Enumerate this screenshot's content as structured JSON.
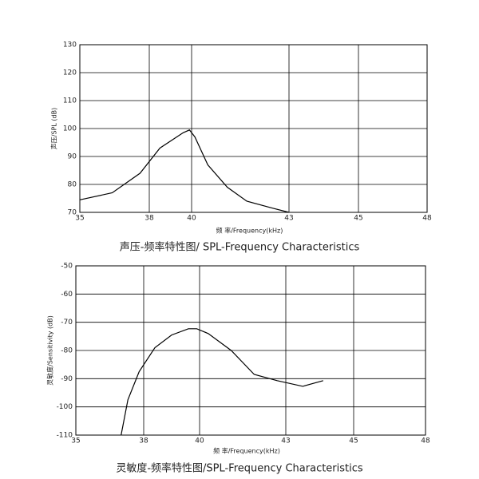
{
  "chart_data": [
    {
      "type": "line",
      "title": "声压-频率特性图/ SPL-Frequency Characteristics",
      "x_label": "频 率/Frequency(kHz)",
      "y_label": "声压/SPL (dB)",
      "x": [
        35,
        36.4,
        37.6,
        38.5,
        39.6,
        39.9,
        40.1,
        40.5,
        41.1,
        41.7,
        42.5,
        43
      ],
      "values": [
        74.5,
        77,
        84,
        93,
        98.5,
        99.5,
        97,
        87,
        79,
        74,
        71.5,
        70
      ],
      "color": "#000000",
      "xlim": [
        35,
        48
      ],
      "xticks": [
        35,
        38,
        40,
        43,
        45,
        48
      ],
      "ylim": [
        70,
        130
      ],
      "yticks": [
        70,
        80,
        90,
        100,
        110,
        120,
        130
      ],
      "grid": true
    },
    {
      "type": "line",
      "title": "灵敏度-频率特性图/SPL-Frequency Characteristics",
      "x_label": "频 率/Frequency(kHz)",
      "y_label": "灵敏度/Sensitivity (dB)",
      "x": [
        37.0,
        37.3,
        37.8,
        38.4,
        39.0,
        39.6,
        39.9,
        40.3,
        41.1,
        41.9,
        42.7,
        43.5,
        44.1
      ],
      "values": [
        -110,
        -97.5,
        -87.5,
        -79,
        -74.5,
        -72.3,
        -72.3,
        -74,
        -80,
        -88.5,
        -90.7,
        -92.7,
        -90.7
      ],
      "color": "#000000",
      "xlim": [
        35,
        48
      ],
      "xticks": [
        35,
        38,
        40,
        43,
        45,
        48
      ],
      "ylim": [
        -110,
        -50
      ],
      "yticks": [
        -110,
        -100,
        -90,
        -80,
        -70,
        -60,
        -50
      ],
      "grid": true
    }
  ]
}
